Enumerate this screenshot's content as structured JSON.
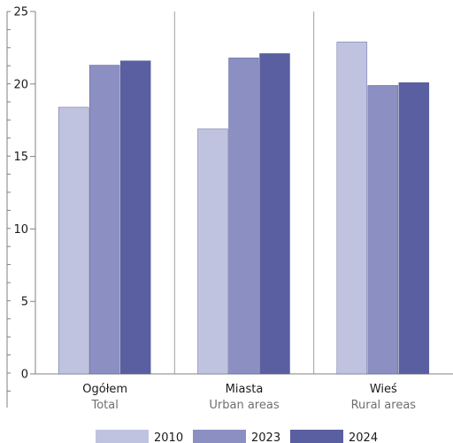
{
  "chart_data": {
    "type": "bar",
    "categories": [
      {
        "label": "Ogółem",
        "sublabel": "Total"
      },
      {
        "label": "Miasta",
        "sublabel": "Urban areas"
      },
      {
        "label": "Wieś",
        "sublabel": "Rural areas"
      }
    ],
    "series": [
      {
        "name": "2010",
        "color": "#c0c3e0",
        "values": [
          18.4,
          16.9,
          22.9
        ]
      },
      {
        "name": "2023",
        "color": "#8b8fc2",
        "values": [
          21.3,
          21.8,
          19.9
        ]
      },
      {
        "name": "2024",
        "color": "#5a5fa2",
        "values": [
          21.6,
          22.1,
          20.1
        ]
      }
    ],
    "yticks": [
      0,
      5,
      10,
      15,
      20,
      25
    ],
    "ylim": [
      0,
      25
    ],
    "legend_position": "bottom",
    "grid": "vertical separators between categories"
  }
}
